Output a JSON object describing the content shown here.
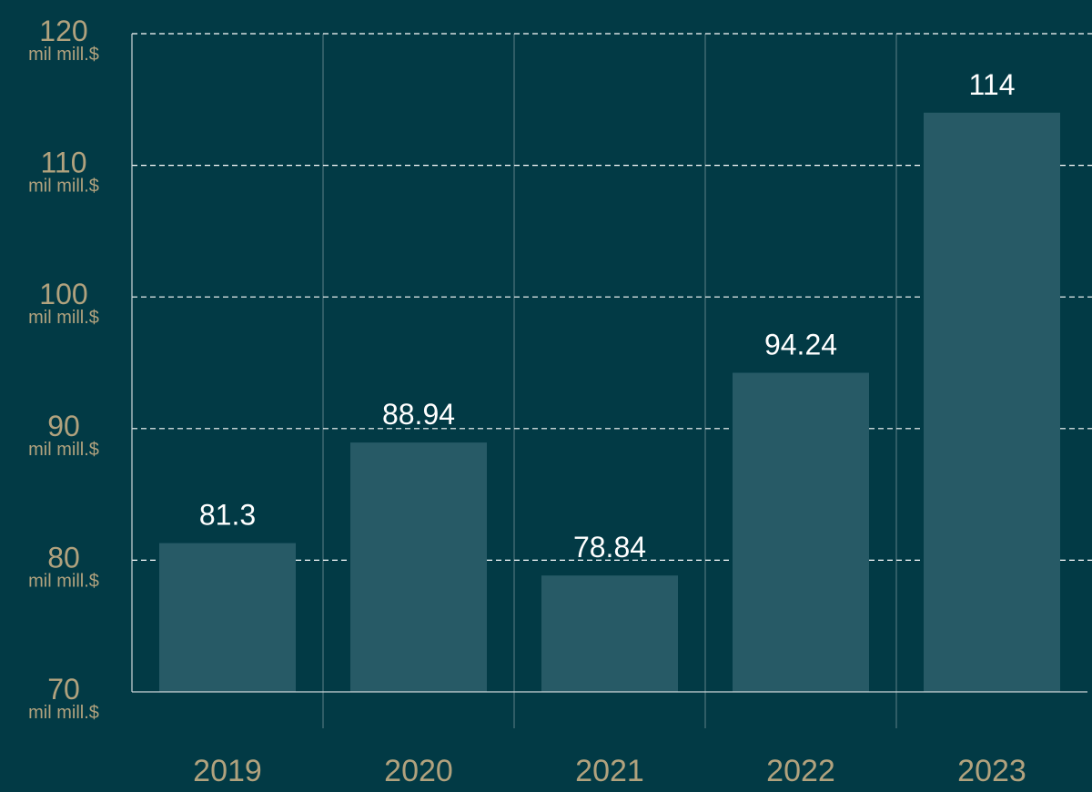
{
  "colors": {
    "background": "#023a45",
    "bar": "#275a66",
    "tick_text": "#b1a27e",
    "value_text": "#ffffff",
    "grid": "#ffffff",
    "axis": "#cfd8da"
  },
  "chart_data": {
    "type": "bar",
    "title": "",
    "xlabel": "",
    "ylabel": "",
    "categories": [
      "2019",
      "2020",
      "2021",
      "2022",
      "2023"
    ],
    "values": [
      81.3,
      88.94,
      78.84,
      94.24,
      114
    ],
    "value_labels": [
      "81.3",
      "88.94",
      "78.84",
      "94.24",
      "114"
    ],
    "ylim": [
      70,
      120
    ],
    "y_ticks": [
      70,
      80,
      90,
      100,
      110,
      120
    ],
    "y_tick_unit": "mil mill.$",
    "grid": {
      "horizontal": "dashed",
      "vertical_separators": true
    },
    "legend": "none"
  }
}
